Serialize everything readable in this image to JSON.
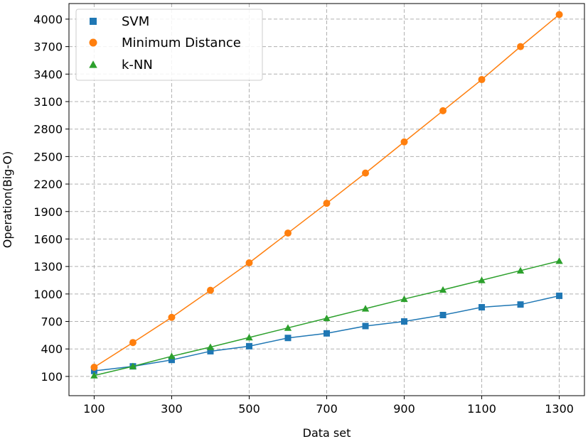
{
  "chart_data": {
    "type": "line",
    "title": "",
    "xlabel": "Data set",
    "ylabel": "Operation(Big-O)",
    "xlim": [
      35,
      1365
    ],
    "ylim": [
      -110,
      4170
    ],
    "x_ticks": [
      100,
      300,
      500,
      700,
      900,
      1100,
      1300
    ],
    "y_ticks": [
      100,
      400,
      700,
      1000,
      1300,
      1600,
      1900,
      2200,
      2500,
      2800,
      3100,
      3400,
      3700,
      4000
    ],
    "grid": true,
    "legend_position": "top-left",
    "x": [
      100,
      200,
      300,
      400,
      500,
      600,
      700,
      800,
      900,
      1000,
      1100,
      1200,
      1300
    ],
    "series": [
      {
        "name": "SVM",
        "marker": "square",
        "color": "#1f77b4",
        "values": [
          160,
          210,
          280,
          375,
          430,
          520,
          570,
          650,
          700,
          770,
          855,
          885,
          980
        ]
      },
      {
        "name": "Minimum Distance",
        "marker": "circle",
        "color": "#ff7f0e",
        "values": [
          200,
          470,
          745,
          1040,
          1340,
          1665,
          1990,
          2320,
          2660,
          3000,
          3340,
          3700,
          4050
        ]
      },
      {
        "name": "k-NN",
        "marker": "triangle",
        "color": "#2ca02c",
        "values": [
          110,
          210,
          320,
          420,
          525,
          630,
          735,
          840,
          945,
          1045,
          1150,
          1255,
          1360
        ]
      }
    ]
  }
}
